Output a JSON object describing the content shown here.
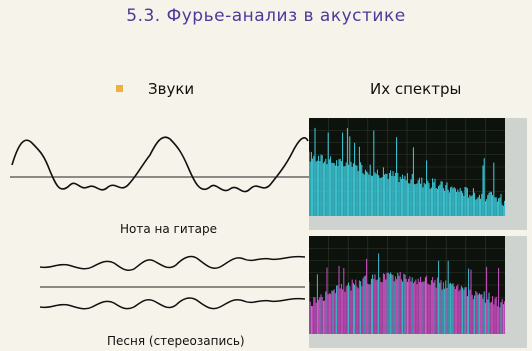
{
  "slide": {
    "title": "5.3. Фурье-анализ в акустике",
    "left_header": "Звуки",
    "right_header": "Их спектры",
    "guitar_caption": "Нота на гитаре",
    "song_caption": "Песня (стереозапись)"
  },
  "colors": {
    "title": "#4a3a9c",
    "bullet": "#f0b040",
    "spectrum_bg": "#0d120d",
    "guitar_spectrum": "#3fd0e0",
    "song_spectrum": "#d050c8",
    "song_spectrum_secondary": "#40c0d0"
  }
}
